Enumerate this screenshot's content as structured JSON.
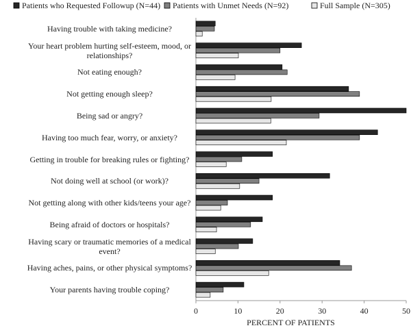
{
  "chart_data": {
    "type": "hbar",
    "x_label": "PERCENT OF PATIENTS",
    "categories": [
      "Having trouble with taking medicine?",
      "Your heart problem hurting self-esteem, mood, or relationships?",
      "Not eating enough?",
      "Not getting enough sleep?",
      "Being sad or angry?",
      "Having too much fear, worry, or anxiety?",
      "Getting in trouble for breaking rules or fighting?",
      "Not doing well at school (or work)?",
      "Not getting along with other kids/teens your age?",
      "Being afraid of doctors or hospitals?",
      "Having scary or traumatic memories of a medical event?",
      "Having aches, pains, or other physical symptoms?",
      "Your parents having trouble coping?"
    ],
    "series": [
      {
        "name": "Patients who Requested Followup (N=44)",
        "color": "#262626",
        "values": [
          4.6,
          25.1,
          20.5,
          36.3,
          50,
          43.2,
          18.2,
          31.8,
          18.2,
          15.8,
          13.5,
          34.2,
          11.4
        ]
      },
      {
        "name": "Patients with Unmet Needs (N=92)",
        "color": "#808080",
        "values": [
          4.4,
          20.0,
          21.7,
          38.9,
          29.3,
          38.9,
          10.9,
          15.0,
          7.5,
          13.0,
          10.1,
          37.0,
          6.5
        ]
      },
      {
        "name": "Full Sample (N=305)",
        "color": "#e6e6e6",
        "values": [
          1.5,
          10.1,
          9.3,
          17.9,
          17.8,
          21.5,
          7.2,
          10.4,
          5.9,
          4.9,
          4.6,
          17.3,
          3.4
        ]
      }
    ],
    "xlim": [
      0,
      50
    ],
    "xticks": [
      0,
      10,
      20,
      30,
      40,
      50
    ],
    "legend": "top"
  }
}
